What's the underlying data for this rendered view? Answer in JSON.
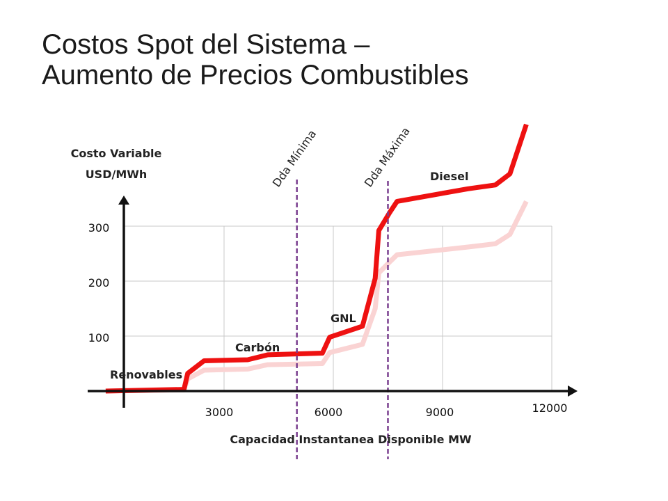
{
  "title": {
    "line1": "Costos Spot del Sistema –",
    "line2": "Aumento de Precios Combustibles"
  },
  "chart_data": {
    "type": "line",
    "ylabel_lines": [
      "Costo Variable",
      "USD/MWh"
    ],
    "xlabel": "Capacidad Instantanea Disponible MW",
    "x_ticks": [
      "3000",
      "6000",
      "9000",
      "12000"
    ],
    "y_ticks": [
      "100",
      "200",
      "300"
    ],
    "grid": true,
    "series": [
      {
        "color": "#ee1111",
        "x": [
          -250,
          1900,
          2000,
          2450,
          3650,
          4200,
          5700,
          5900,
          6800,
          7150,
          7250,
          7550,
          7750,
          9700,
          10450,
          10850,
          11300
        ],
        "y": [
          0,
          3,
          32,
          55,
          57,
          66,
          69,
          98,
          118,
          205,
          292,
          325,
          345,
          368,
          375,
          395,
          485
        ]
      },
      {
        "color": "#fad3d3",
        "x": [
          -250,
          1900,
          2000,
          2450,
          3650,
          4200,
          5700,
          5900,
          6800,
          7150,
          7250,
          7550,
          7750,
          9700,
          10450,
          10850,
          11300
        ],
        "y": [
          0,
          2,
          22,
          38,
          40,
          48,
          50,
          70,
          85,
          150,
          215,
          235,
          248,
          262,
          268,
          285,
          345
        ]
      }
    ],
    "region_labels": [
      {
        "text": "Renovables",
        "x": 100,
        "y": 30
      },
      {
        "text": "Carbón",
        "x": 4300,
        "y": 85
      },
      {
        "text": "GNL",
        "x": 6330,
        "y": 134
      },
      {
        "text": "Diesel",
        "x": 9380,
        "y": 385
      }
    ],
    "vlines": [
      {
        "label": "Dda Mínima",
        "x": 5000
      },
      {
        "label": "Dda Máxima",
        "x": 7500
      }
    ],
    "colors": {
      "primary": "#ee1111",
      "secondary": "#fad3d3",
      "demand_line": "#7a3f8f",
      "axis": "#111111",
      "grid": "#c8c8c8"
    }
  }
}
